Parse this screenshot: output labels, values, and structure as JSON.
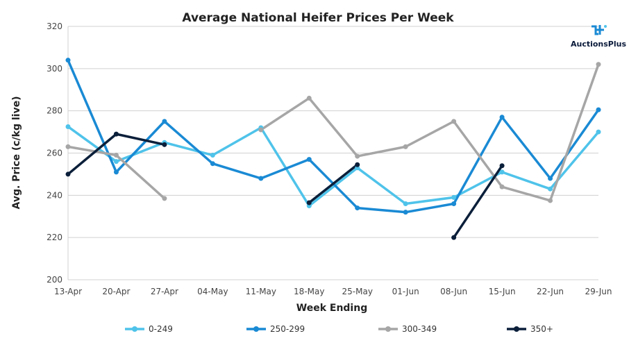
{
  "chart_data": {
    "type": "line",
    "title": "Average National Heifer Prices Per Week",
    "xlabel": "Week Ending",
    "ylabel": "Avg. Price (c/kg live)",
    "ylim": [
      200,
      320
    ],
    "yticks": [
      200,
      220,
      240,
      260,
      280,
      300,
      320
    ],
    "grid": true,
    "legend_position": "bottom",
    "categories": [
      "13-Apr",
      "20-Apr",
      "27-Apr",
      "04-May",
      "11-May",
      "18-May",
      "25-May",
      "01-Jun",
      "08-Jun",
      "15-Jun",
      "22-Jun",
      "29-Jun"
    ],
    "series": [
      {
        "name": "0-249",
        "color": "#4fc3ea",
        "values": [
          272.5,
          256,
          265,
          259,
          272,
          235,
          253,
          236,
          239,
          251,
          243,
          270
        ]
      },
      {
        "name": "250-299",
        "color": "#1a8ad4",
        "values": [
          304,
          251,
          275,
          255,
          248,
          257,
          234,
          232,
          236,
          277,
          248,
          280.5
        ]
      },
      {
        "name": "300-349",
        "color": "#a6a6a6",
        "values": [
          263,
          259,
          null,
          null,
          271,
          286,
          258.5,
          263,
          275,
          244,
          237.5,
          302
        ]
      },
      {
        "name": "350+",
        "color": "#0b1f3a",
        "values": [
          250,
          269,
          264,
          null,
          null,
          236.5,
          254.5,
          null,
          220,
          254,
          null,
          null
        ]
      }
    ],
    "extra_segments": [
      {
        "series": "300-349",
        "from": 1,
        "to": 2,
        "values": [
          259,
          238.5
        ]
      }
    ]
  },
  "logo": {
    "text": "AuctionsPlus",
    "icon": "auctionsplus-logo-icon"
  }
}
